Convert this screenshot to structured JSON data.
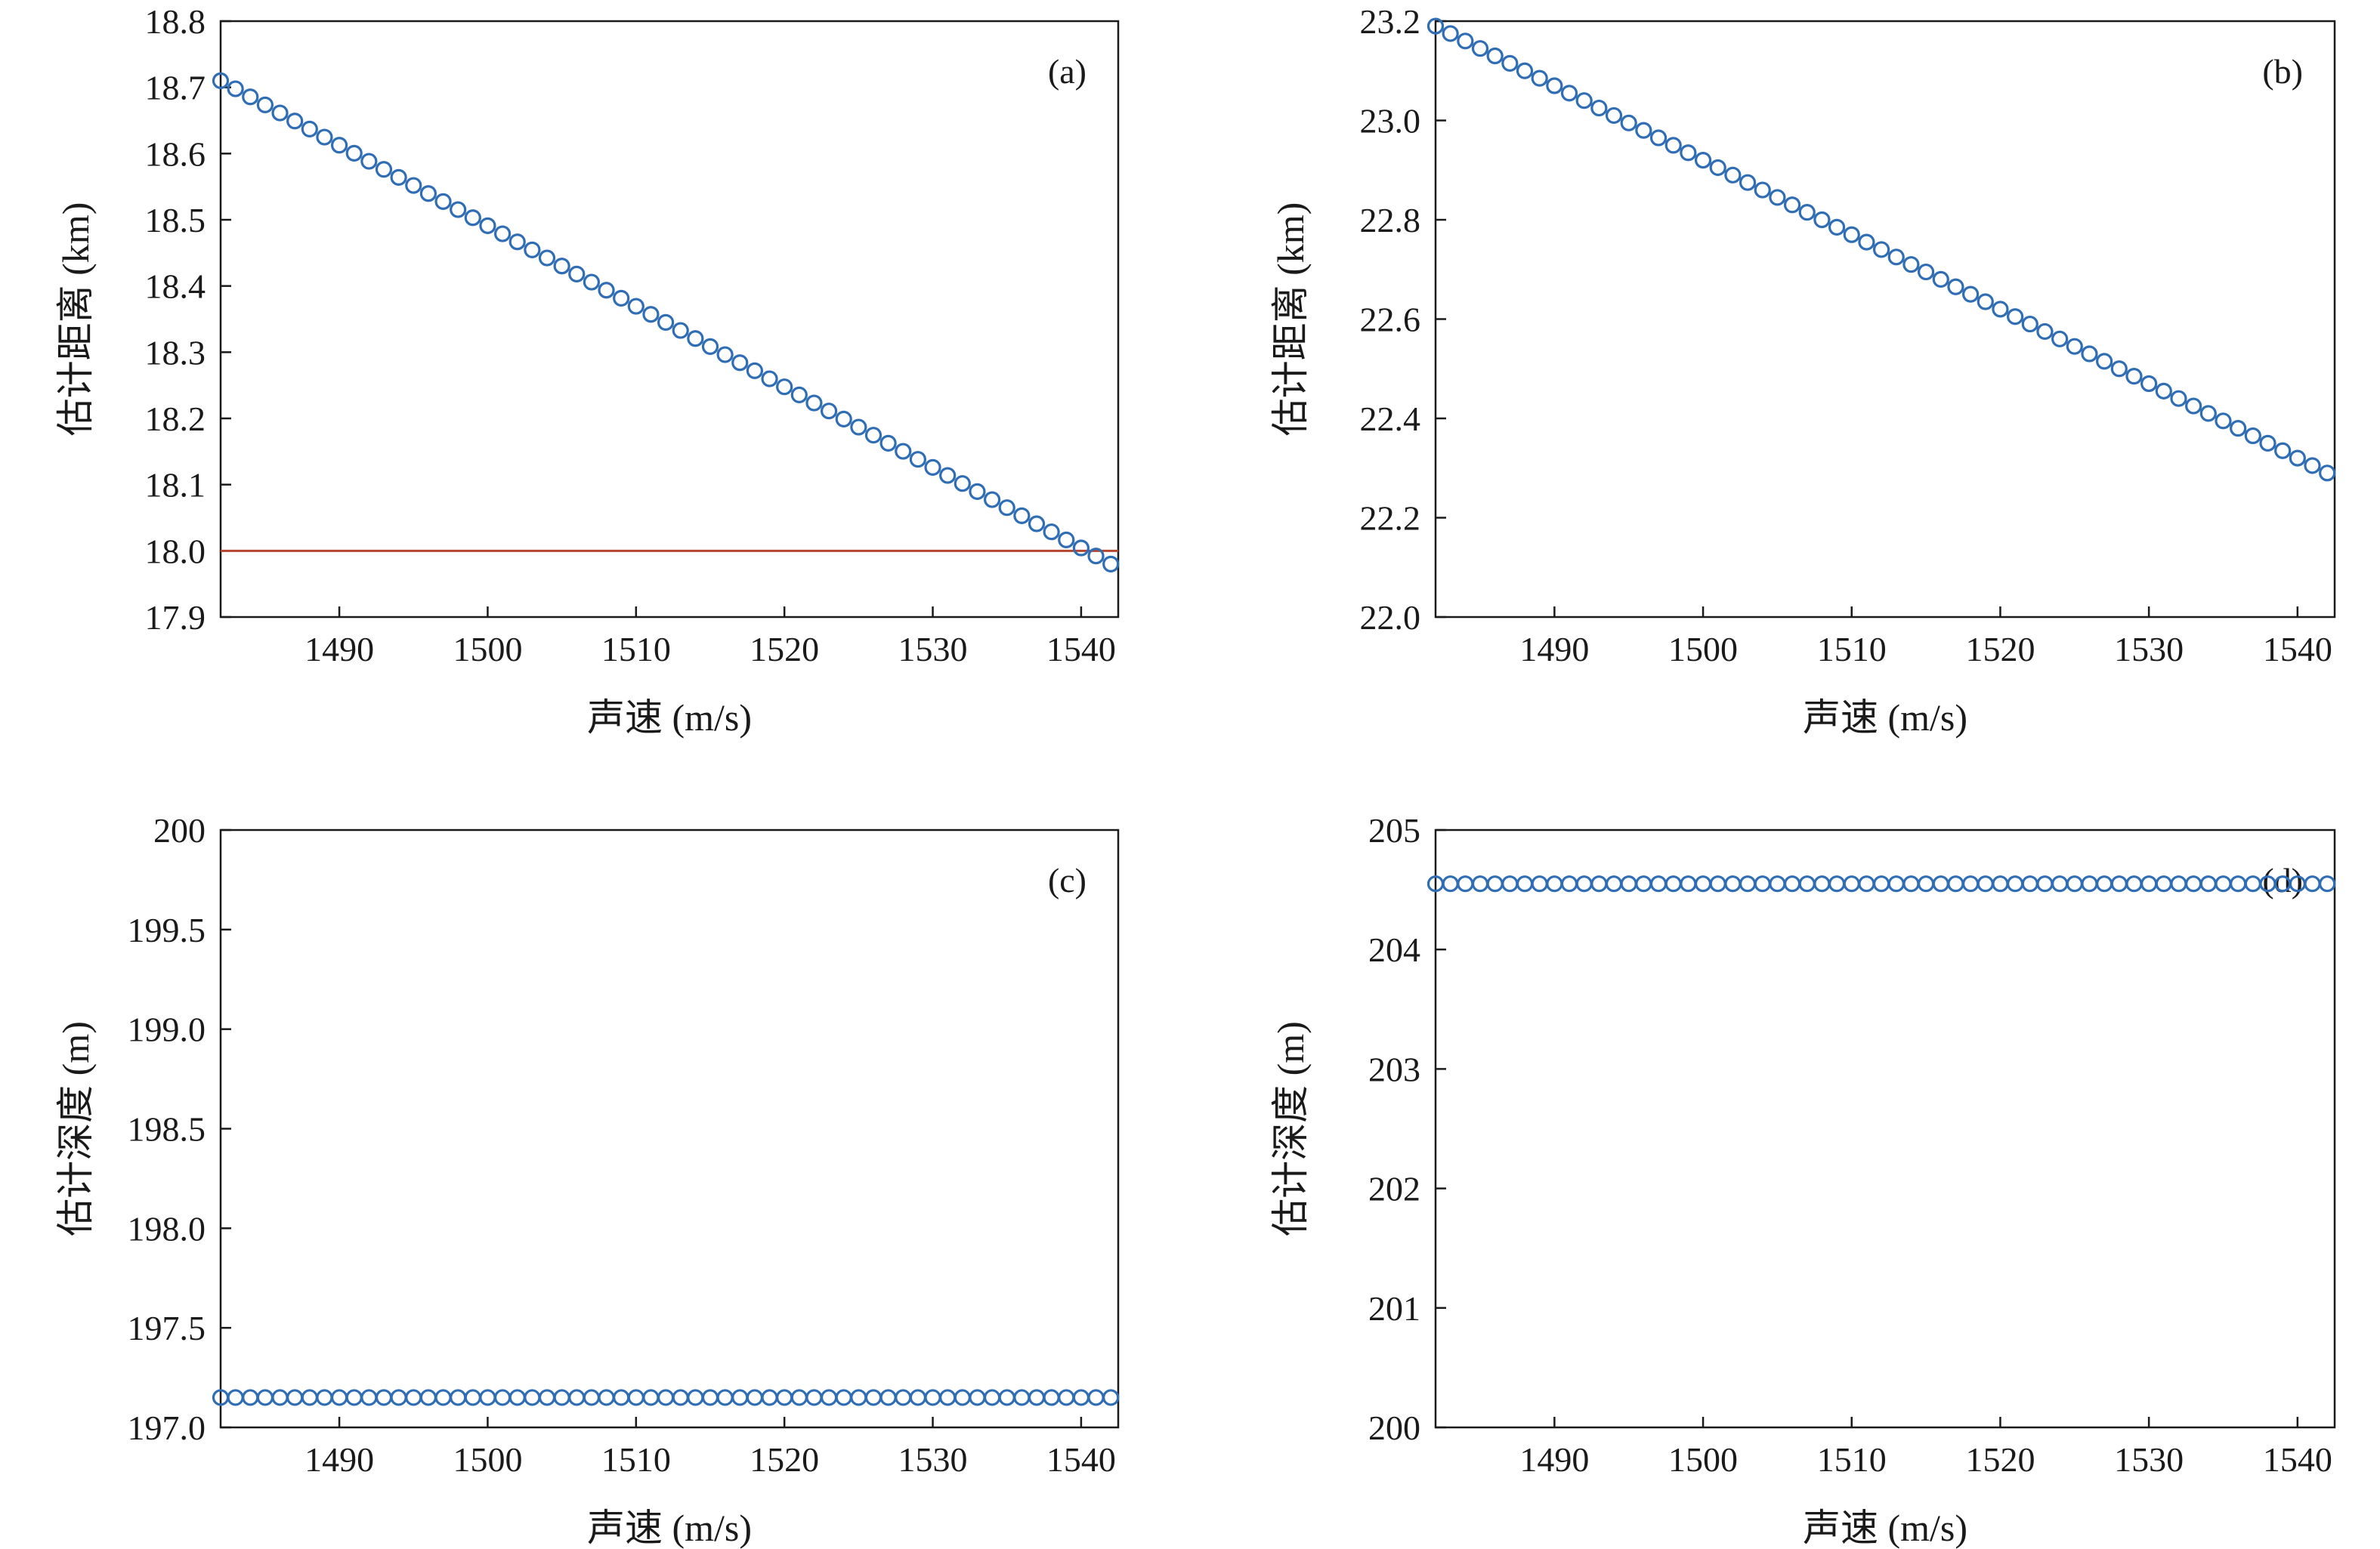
{
  "colors": {
    "series": "#2f6db5",
    "reference": "#b5452f",
    "axis": "#1a1a1a"
  },
  "chart_data": [
    {
      "type": "scatter",
      "tag": "(a)",
      "xlabel": "声速 (m/s)",
      "ylabel": "估计距离 (km)",
      "xlim": [
        1482,
        1542.5
      ],
      "ylim": [
        17.9,
        18.8
      ],
      "xticks": [
        1490,
        1500,
        1510,
        1520,
        1530,
        1540
      ],
      "yticks": [
        17.9,
        18.0,
        18.1,
        18.2,
        18.3,
        18.4,
        18.5,
        18.6,
        18.7,
        18.8
      ],
      "ytick_decimals": 1,
      "reference_line": {
        "y": 18.0
      },
      "series": [
        {
          "x_start": 1482,
          "x_end": 1542,
          "x_step": 1,
          "y_start": 18.71,
          "y_end": 17.98
        }
      ]
    },
    {
      "type": "scatter",
      "tag": "(b)",
      "xlabel": "声速 (m/s)",
      "ylabel": "估计距离 (km)",
      "xlim": [
        1482,
        1542.5
      ],
      "ylim": [
        22.0,
        23.2
      ],
      "xticks": [
        1490,
        1500,
        1510,
        1520,
        1530,
        1540
      ],
      "yticks": [
        22.0,
        22.2,
        22.4,
        22.6,
        22.8,
        23.0,
        23.2
      ],
      "ytick_decimals": 1,
      "series": [
        {
          "x_start": 1482,
          "x_end": 1542,
          "x_step": 1,
          "y_start": 23.19,
          "y_end": 22.29
        }
      ]
    },
    {
      "type": "scatter",
      "tag": "(c)",
      "xlabel": "声速 (m/s)",
      "ylabel": "估计深度 (m)",
      "xlim": [
        1482,
        1542.5
      ],
      "ylim": [
        197.0,
        200.0
      ],
      "xticks": [
        1490,
        1500,
        1510,
        1520,
        1530,
        1540
      ],
      "yticks": [
        197.0,
        197.5,
        198.0,
        198.5,
        199.0,
        199.5,
        200
      ],
      "ytick_labels": [
        "197.0",
        "197.5",
        "198.0",
        "198.5",
        "199.0",
        "199.5",
        "200"
      ],
      "series": [
        {
          "x_start": 1482,
          "x_end": 1542,
          "x_step": 1,
          "y_start": 197.15,
          "y_end": 197.15
        }
      ]
    },
    {
      "type": "scatter",
      "tag": "(d)",
      "xlabel": "声速 (m/s)",
      "ylabel": "估计深度 (m)",
      "xlim": [
        1482,
        1542.5
      ],
      "ylim": [
        200,
        205
      ],
      "xticks": [
        1490,
        1500,
        1510,
        1520,
        1530,
        1540
      ],
      "yticks": [
        200,
        201,
        202,
        203,
        204,
        205
      ],
      "ytick_decimals": 0,
      "series": [
        {
          "x_start": 1482,
          "x_end": 1542,
          "x_step": 1,
          "y_start": 204.55,
          "y_end": 204.55
        }
      ]
    }
  ]
}
